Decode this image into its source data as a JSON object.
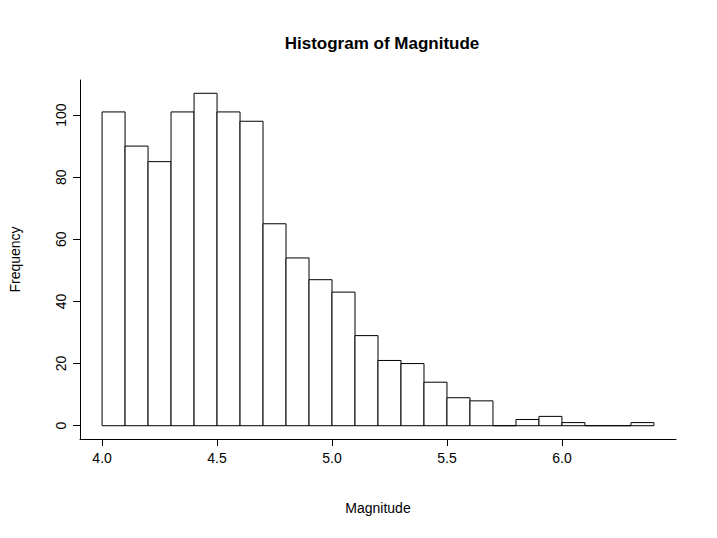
{
  "chart_data": {
    "type": "histogram",
    "title": "Histogram of Magnitude",
    "x_label": "Magnitude",
    "y_label": "Frequency",
    "bins": [
      4.0,
      4.1,
      4.2,
      4.3,
      4.4,
      4.5,
      4.6,
      4.7,
      4.8,
      4.9,
      5.0,
      5.1,
      5.2,
      5.3,
      5.4,
      5.5,
      5.6,
      5.7,
      5.8,
      5.9,
      6.0,
      6.1,
      6.2,
      6.3,
      6.4
    ],
    "values": [
      101,
      90,
      85,
      101,
      107,
      101,
      98,
      65,
      54,
      47,
      43,
      29,
      21,
      20,
      14,
      9,
      8,
      0,
      2,
      3,
      1,
      0,
      0,
      1
    ],
    "color": "#ffffff",
    "xlim": [
      3.904,
      6.496
    ],
    "ylim": [
      -4.28,
      111.28
    ],
    "xticks": [
      {
        "value": 4,
        "label": "4.0"
      },
      4.5,
      {
        "value": 5,
        "label": "5.0"
      },
      5.5,
      {
        "value": 6,
        "label": "6.0"
      }
    ],
    "yticks": [
      0,
      20,
      40,
      60,
      80,
      100
    ],
    "grid": false
  }
}
